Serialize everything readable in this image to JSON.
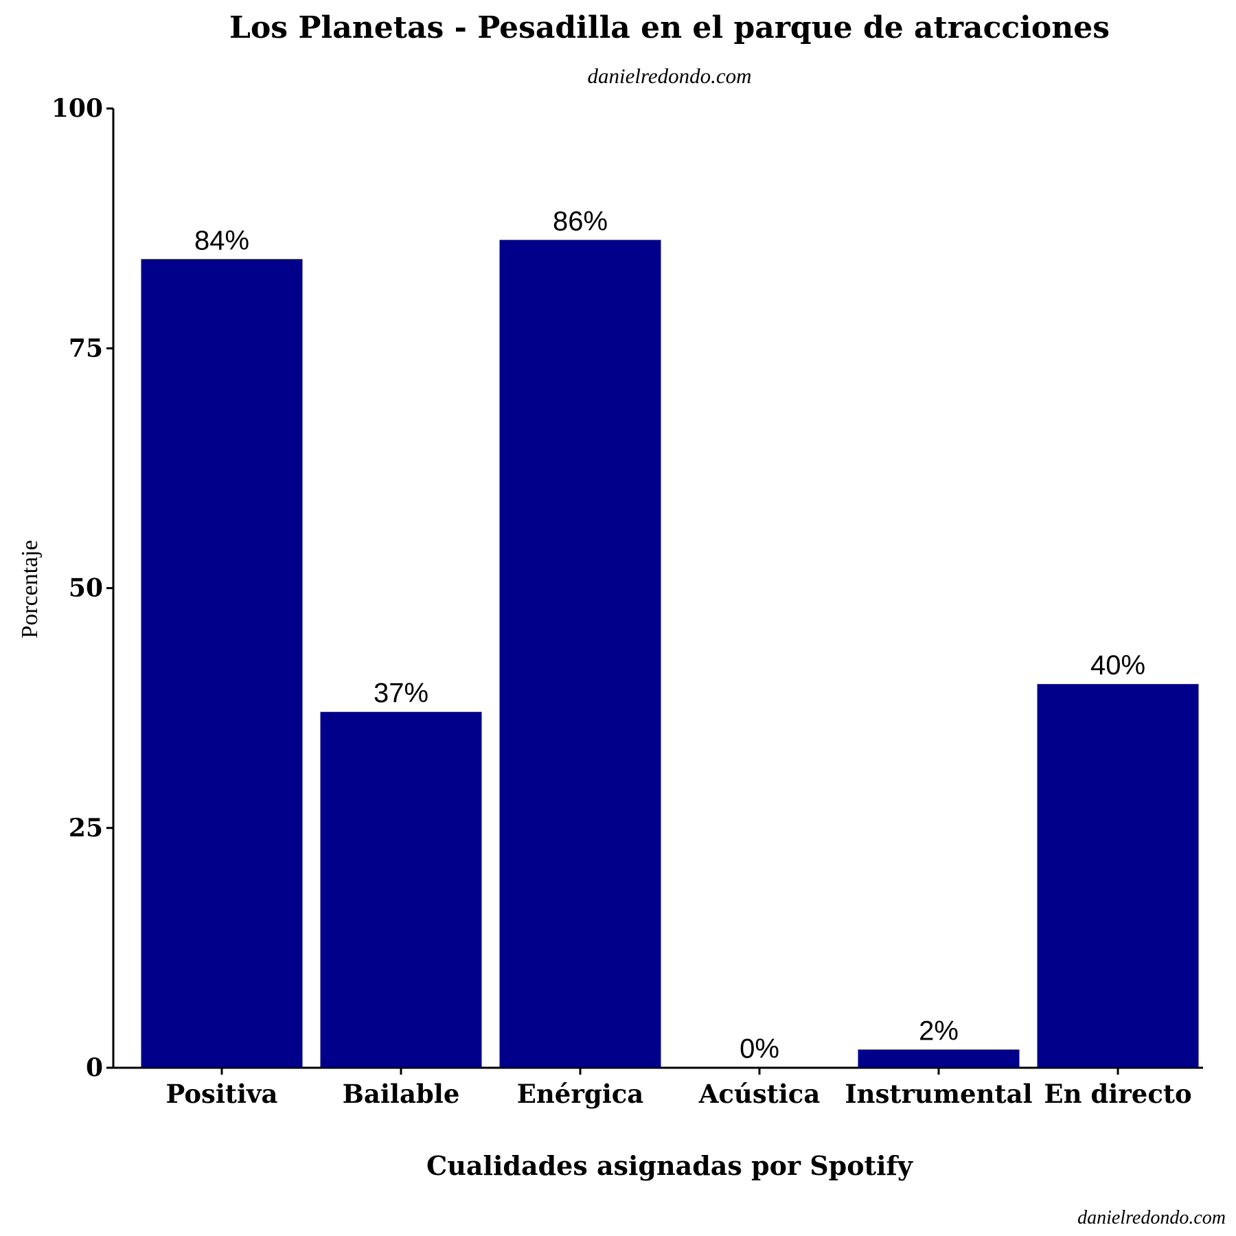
{
  "chart_data": {
    "type": "bar",
    "title": "Los Planetas - Pesadilla en el parque de atracciones",
    "subtitle": "danielredondo.com",
    "caption": "danielredondo.com",
    "xlabel": "Cualidades asignadas por Spotify",
    "ylabel": "Porcentaje",
    "categories": [
      "Positiva",
      "Bailable",
      "Enérgica",
      "Acústica",
      "Instrumental",
      "En directo"
    ],
    "values": [
      84.3,
      37.1,
      86.3,
      0.05,
      1.9,
      40
    ],
    "labels": [
      "84%",
      "37%",
      "86%",
      "0%",
      "2%",
      "40%"
    ],
    "ylim": [
      0,
      100
    ],
    "yticks": [
      0,
      25,
      50,
      75,
      100
    ],
    "bar_color": "#00008B",
    "grid": false,
    "legend": "none"
  }
}
